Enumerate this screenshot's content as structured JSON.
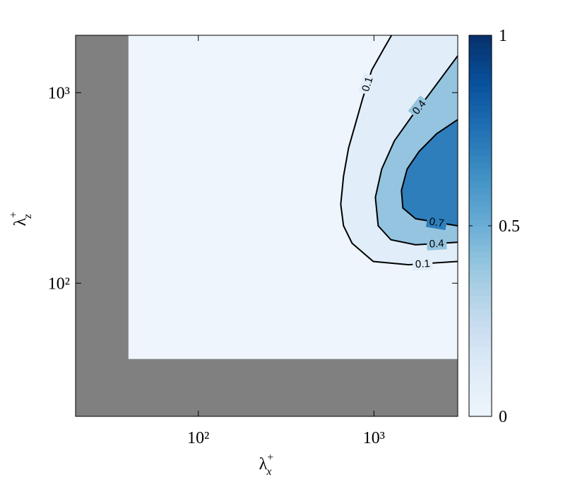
{
  "chart_data": {
    "type": "contour",
    "xlabel": "λ",
    "xlabel_sub": "x",
    "xlabel_sup": "+",
    "ylabel": "λ",
    "ylabel_sub": "z",
    "ylabel_sup": "+",
    "xscale": "log",
    "yscale": "log",
    "xlim": [
      20,
      3000
    ],
    "ylim": [
      20,
      2000
    ],
    "xticks": [
      {
        "value": 100,
        "label": "10²"
      },
      {
        "value": 1000,
        "label": "10³"
      }
    ],
    "yticks": [
      {
        "value": 100,
        "label": "10²"
      },
      {
        "value": 1000,
        "label": "10³"
      }
    ],
    "mask": {
      "x_below": 40,
      "y_below": 40,
      "color": "#808080"
    },
    "colormap": [
      "#eef5fc",
      "#deebf7",
      "#c6dbef",
      "#9ecae1",
      "#6baed6",
      "#4292c6",
      "#2171b5",
      "#08519c",
      "#08306b"
    ],
    "clim": [
      0,
      1
    ],
    "cticks": [
      0,
      0.5,
      1
    ],
    "line_color": "#000000",
    "contours": [
      {
        "level": 0.1,
        "x": [
          1259,
          1138,
          972,
          863,
          787,
          717,
          671,
          647,
          671,
          751,
          991,
          1574,
          2277,
          3000
        ],
        "y": [
          2000,
          1700,
          1315,
          934,
          692,
          513,
          364,
          259,
          200,
          162,
          130,
          125,
          128,
          130
        ]
      },
      {
        "level": 0.4,
        "x": [
          3000,
          1983,
          1648,
          1308,
          1107,
          1019,
          1057,
          1249,
          1726,
          3000
        ],
        "y": [
          1561,
          934,
          754,
          559,
          397,
          282,
          200,
          169,
          159,
          164
        ]
      },
      {
        "level": 0.7,
        "x": [
          3000,
          2277,
          1807,
          1545,
          1434,
          1461,
          1726,
          3000
        ],
        "y": [
          722,
          609,
          491,
          397,
          307,
          248,
          218,
          200
        ]
      }
    ]
  }
}
